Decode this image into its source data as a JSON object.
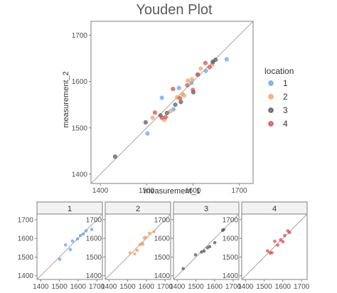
{
  "chart_data": [
    {
      "type": "scatter",
      "title": "Youden Plot",
      "xlabel": "measurement_1",
      "ylabel": "measurement_2",
      "xlim": [
        1380,
        1730
      ],
      "ylim": [
        1380,
        1730
      ],
      "xticks": [
        1400,
        1500,
        1600,
        1700
      ],
      "yticks": [
        1400,
        1500,
        1600,
        1700
      ],
      "reference_line": "y = x",
      "legend": {
        "title": "location",
        "placement": "right",
        "entries": [
          "1",
          "2",
          "3",
          "4"
        ]
      },
      "grid": false,
      "series": [
        {
          "name": "1",
          "color": "#6c9ee0",
          "points": [
            [
              1502,
              1488
            ],
            [
              1533,
              1565
            ],
            [
              1558,
              1540
            ],
            [
              1570,
              1586
            ],
            [
              1597,
              1597
            ],
            [
              1612,
              1615
            ],
            [
              1628,
              1623
            ],
            [
              1643,
              1640
            ],
            [
              1673,
              1648
            ]
          ]
        },
        {
          "name": "2",
          "color": "#f0a060",
          "points": [
            [
              1513,
              1522
            ],
            [
              1538,
              1517
            ],
            [
              1551,
              1536
            ],
            [
              1566,
              1566
            ],
            [
              1577,
              1573
            ],
            [
              1581,
              1570
            ],
            [
              1589,
              1602
            ],
            [
              1598,
              1605
            ],
            [
              1617,
              1628
            ],
            [
              1641,
              1636
            ]
          ]
        },
        {
          "name": "3",
          "color": "#555555",
          "points": [
            [
              1432,
              1438
            ],
            [
              1498,
              1512
            ],
            [
              1530,
              1527
            ],
            [
              1544,
              1532
            ],
            [
              1562,
              1550
            ],
            [
              1574,
              1556
            ],
            [
              1601,
              1577
            ],
            [
              1643,
              1643
            ],
            [
              1649,
              1647
            ]
          ]
        },
        {
          "name": "4",
          "color": "#d04848",
          "points": [
            [
              1518,
              1533
            ],
            [
              1533,
              1522
            ],
            [
              1541,
              1523
            ],
            [
              1557,
              1584
            ],
            [
              1572,
              1564
            ],
            [
              1588,
              1592
            ],
            [
              1600,
              1582
            ],
            [
              1610,
              1615
            ],
            [
              1627,
              1640
            ],
            [
              1636,
              1631
            ]
          ]
        }
      ]
    },
    {
      "type": "scatter",
      "facets": [
        "1",
        "2",
        "3",
        "4"
      ],
      "xlim": [
        1380,
        1730
      ],
      "ylim": [
        1380,
        1730
      ],
      "xticks": [
        1400,
        1500,
        1600,
        1700
      ],
      "yticks": [
        1400,
        1500,
        1600,
        1700
      ],
      "reference_line": "y = x",
      "note": "small multiples by location; same data as above"
    }
  ]
}
